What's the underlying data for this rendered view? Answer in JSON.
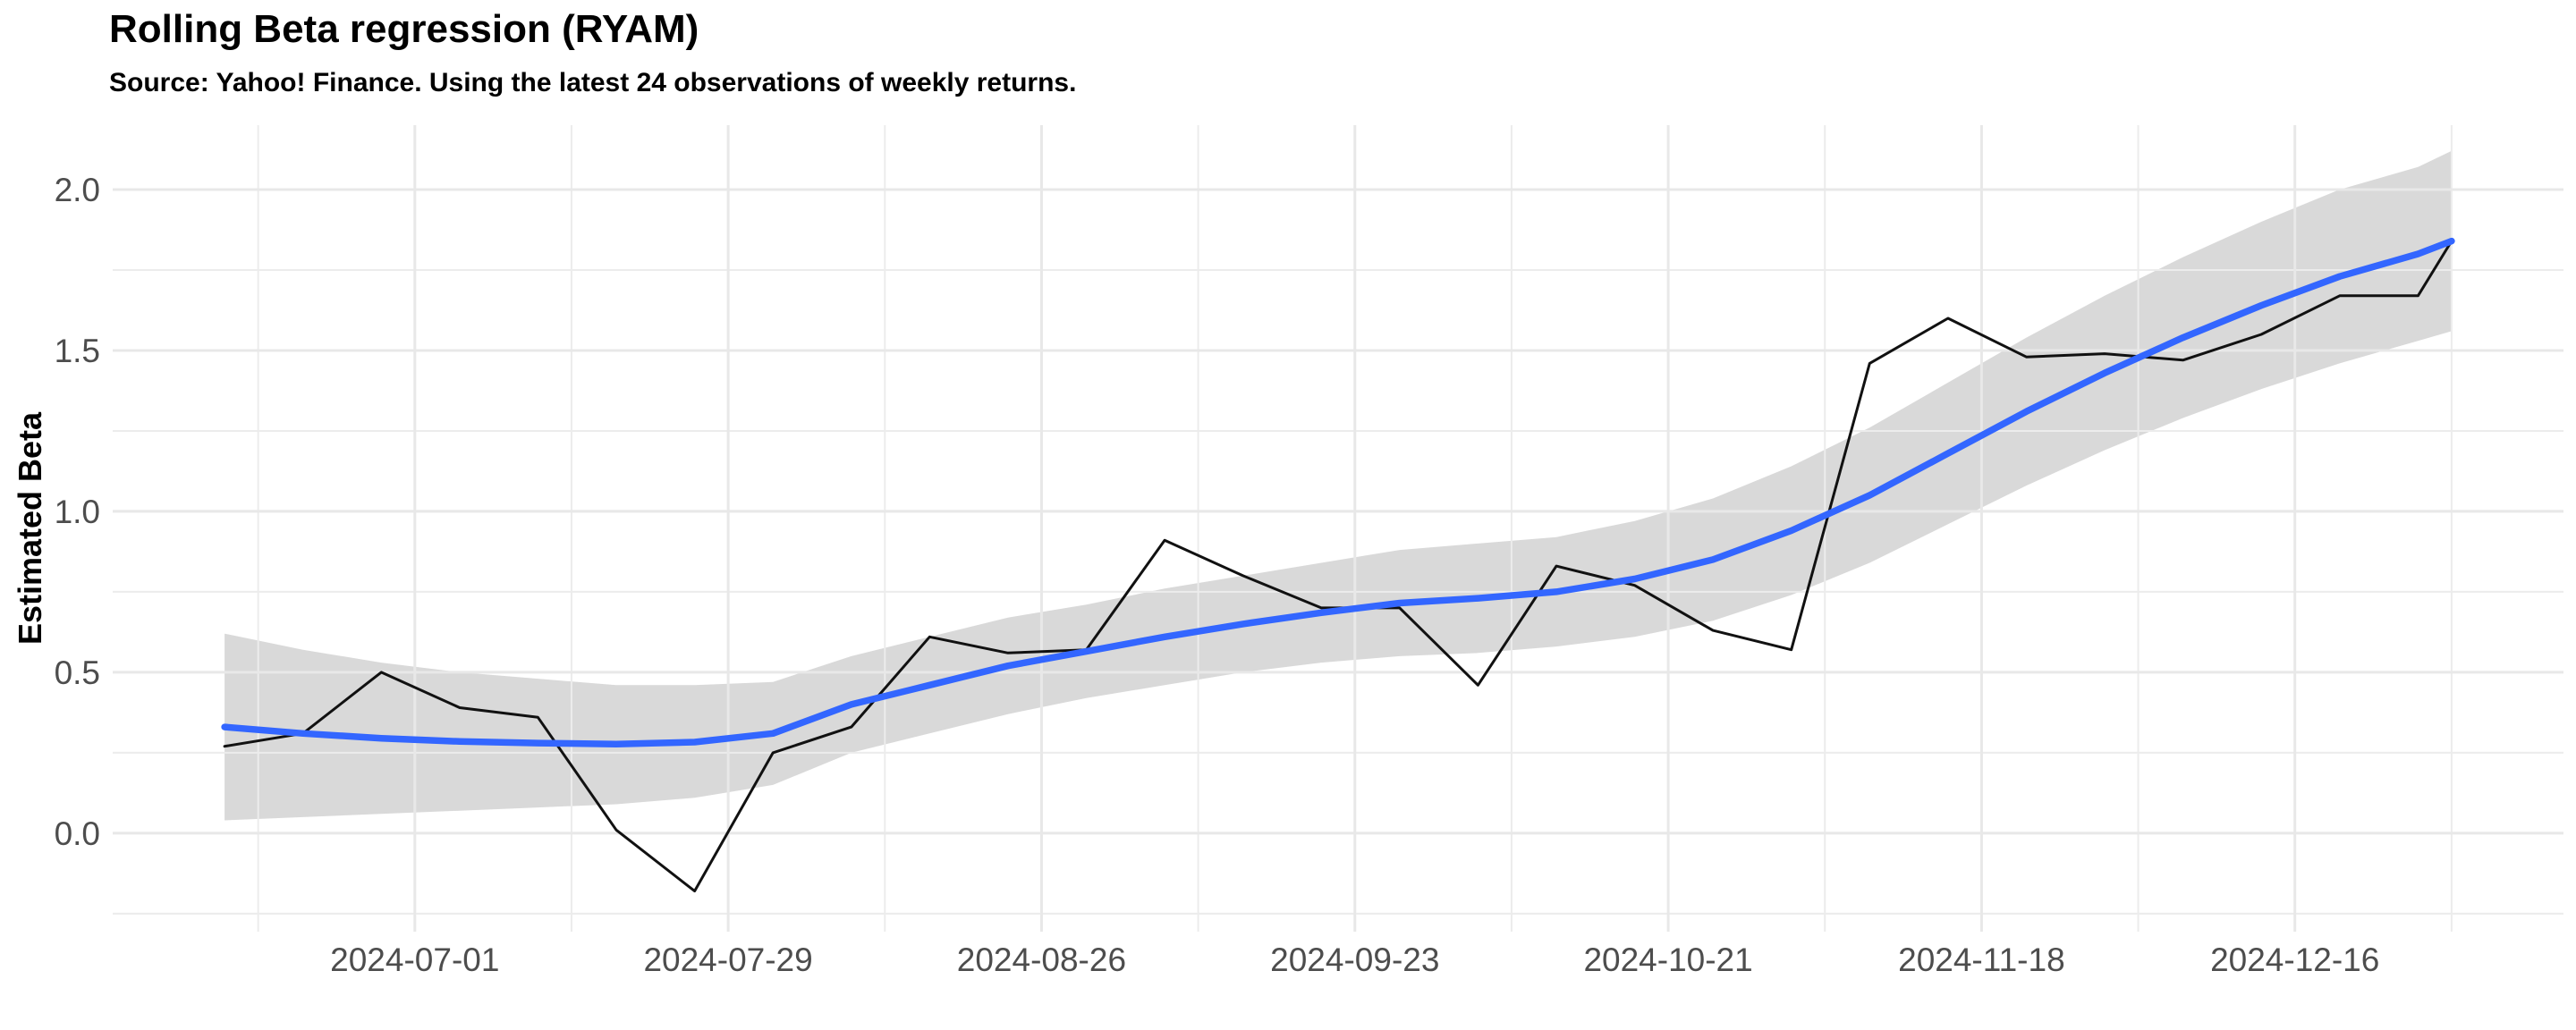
{
  "header": {
    "title": "Rolling Beta regression (RYAM)",
    "subtitle": "Source: Yahoo! Finance. Using the latest 24 observations of weekly returns."
  },
  "chart_data": {
    "type": "line",
    "title": "Rolling Beta regression (RYAM)",
    "subtitle": "Source: Yahoo! Finance. Using the latest 24 observations of weekly returns.",
    "xlabel": "",
    "ylabel": "Estimated Beta",
    "legend": "none",
    "grid": true,
    "background": "#FFFFFF",
    "x": [
      "2024-06-14",
      "2024-06-21",
      "2024-06-28",
      "2024-07-05",
      "2024-07-12",
      "2024-07-19",
      "2024-07-26",
      "2024-08-02",
      "2024-08-09",
      "2024-08-16",
      "2024-08-23",
      "2024-08-30",
      "2024-09-06",
      "2024-09-13",
      "2024-09-20",
      "2024-09-27",
      "2024-10-04",
      "2024-10-11",
      "2024-10-18",
      "2024-10-25",
      "2024-11-01",
      "2024-11-08",
      "2024-11-15",
      "2024-11-22",
      "2024-11-29",
      "2024-12-06",
      "2024-12-13",
      "2024-12-20",
      "2024-12-27",
      "2024-12-30"
    ],
    "series": [
      {
        "name": "rolling-beta-weekly",
        "color": "#111111",
        "stroke_width": 3,
        "values": [
          0.27,
          0.31,
          0.5,
          0.39,
          0.36,
          0.01,
          -0.18,
          0.25,
          0.33,
          0.61,
          0.56,
          0.57,
          0.91,
          0.8,
          0.7,
          0.7,
          0.46,
          0.83,
          0.77,
          0.63,
          0.57,
          1.46,
          1.6,
          1.48,
          1.49,
          1.47,
          1.55,
          1.67,
          1.67,
          1.84
        ]
      },
      {
        "name": "loess-smooth",
        "color": "#3366FF",
        "stroke_width": 7.5,
        "values": [
          0.33,
          0.31,
          0.295,
          0.285,
          0.28,
          0.277,
          0.283,
          0.31,
          0.4,
          0.46,
          0.52,
          0.565,
          0.61,
          0.65,
          0.685,
          0.715,
          0.73,
          0.75,
          0.79,
          0.85,
          0.94,
          1.05,
          1.18,
          1.31,
          1.43,
          1.54,
          1.64,
          1.73,
          1.8,
          1.84
        ]
      }
    ],
    "band": {
      "name": "confidence-band",
      "fill": "#D9D9D9",
      "lower": [
        0.04,
        0.05,
        0.06,
        0.07,
        0.08,
        0.09,
        0.11,
        0.15,
        0.25,
        0.31,
        0.37,
        0.42,
        0.46,
        0.5,
        0.53,
        0.55,
        0.56,
        0.58,
        0.61,
        0.66,
        0.74,
        0.84,
        0.96,
        1.08,
        1.19,
        1.29,
        1.38,
        1.46,
        1.53,
        1.56
      ],
      "upper": [
        0.62,
        0.57,
        0.53,
        0.5,
        0.48,
        0.46,
        0.46,
        0.47,
        0.55,
        0.61,
        0.67,
        0.71,
        0.76,
        0.8,
        0.84,
        0.88,
        0.9,
        0.92,
        0.97,
        1.04,
        1.14,
        1.26,
        1.4,
        1.54,
        1.67,
        1.79,
        1.9,
        2.0,
        2.07,
        2.12
      ]
    },
    "x_axis": {
      "lim": [
        "2024-06-04",
        "2025-01-09"
      ],
      "major_ticks": [
        "2024-07-01",
        "2024-07-29",
        "2024-08-26",
        "2024-09-23",
        "2024-10-21",
        "2024-11-18",
        "2024-12-16"
      ],
      "major_tick_labels": [
        "2024-07-01",
        "2024-07-29",
        "2024-08-26",
        "2024-09-23",
        "2024-10-21",
        "2024-11-18",
        "2024-12-16"
      ],
      "minor_ticks": [
        "2024-06-17",
        "2024-07-15",
        "2024-08-12",
        "2024-09-09",
        "2024-10-07",
        "2024-11-04",
        "2024-12-02",
        "2024-12-30"
      ]
    },
    "y_axis": {
      "lim": [
        -0.306,
        2.2
      ],
      "major_ticks": [
        0.0,
        0.5,
        1.0,
        1.5,
        2.0
      ],
      "major_tick_labels": [
        "0.0",
        "0.5",
        "1.0",
        "1.5",
        "2.0"
      ],
      "minor_ticks": [
        -0.25,
        0.25,
        0.75,
        1.25,
        1.75
      ]
    },
    "style": {
      "grid_major_color": "#E8E8E8",
      "grid_minor_color": "#ECECEC",
      "grid_major_width": 3,
      "grid_minor_width": 2,
      "tick_label_color": "#4D4D4D",
      "tick_label_size": 37,
      "axis_title_color": "#000000",
      "axis_title_size": 36
    }
  }
}
